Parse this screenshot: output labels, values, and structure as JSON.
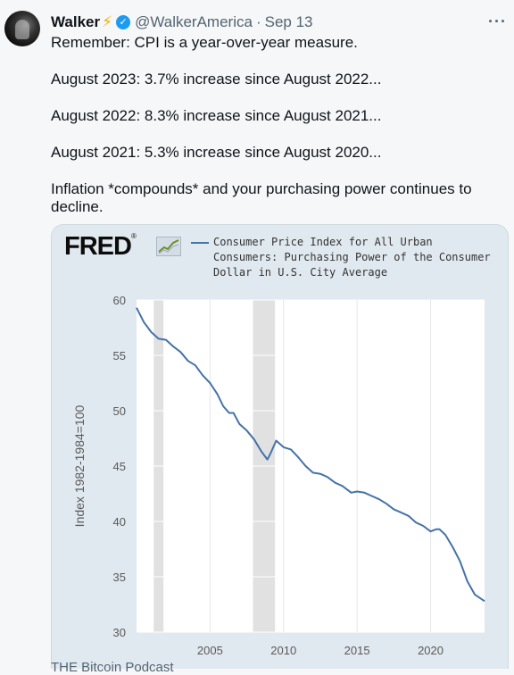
{
  "author": {
    "name": "Walker",
    "bolt": "⚡",
    "handle": "@WalkerAmerica",
    "separator": "·",
    "date": "Sep 13"
  },
  "icons": {
    "avatar": "avatar-icon",
    "verified": "verified-badge-icon",
    "more": "more-options-icon"
  },
  "more_label": "···",
  "tweet": {
    "lines": [
      "Remember: CPI is a year-over-year measure.",
      "August 2023: 3.7% increase since August 2022...",
      "August 2022: 8.3% increase since August 2021...",
      "August 2021: 5.3% increase since August 2020...",
      "Inflation *compounds* and your purchasing power continues to decline."
    ]
  },
  "card": {
    "logo": "FRED",
    "logo_reg": "®",
    "legend_lines": [
      "Consumer Price Index for All Urban",
      "Consumers: Purchasing Power of the Consumer",
      "Dollar in U.S. City Average"
    ]
  },
  "next_tweet_peek": "THE Bitcoin Podcast",
  "colors": {
    "series": "#4572a7",
    "recession": "#e1e1e1",
    "plot_bg": "#ffffff",
    "card_bg": "#e1e9f0",
    "verified": "#1d9bf0"
  },
  "chart_data": {
    "type": "line",
    "ylabel": "Index 1982-1984=100",
    "ylim": [
      30,
      60
    ],
    "yticks": [
      30,
      35,
      40,
      45,
      50,
      55,
      60
    ],
    "xlim": [
      2000.0,
      2023.67
    ],
    "xticks": [
      2005,
      2010,
      2015,
      2020
    ],
    "recessions": [
      [
        2001.17,
        2001.83
      ],
      [
        2007.92,
        2009.42
      ]
    ],
    "series": [
      {
        "x": [
          2000.0,
          2000.5,
          2001.0,
          2001.5,
          2002.0,
          2002.5,
          2003.0,
          2003.5,
          2004.0,
          2004.5,
          2005.0,
          2005.5,
          2005.9,
          2006.3,
          2006.6,
          2007.0,
          2007.5,
          2008.0,
          2008.5,
          2008.9,
          2009.1,
          2009.5,
          2010.0,
          2010.5,
          2011.0,
          2011.5,
          2012.0,
          2012.5,
          2013.0,
          2013.5,
          2014.0,
          2014.6,
          2015.0,
          2015.5,
          2016.0,
          2016.5,
          2017.0,
          2017.5,
          2018.0,
          2018.5,
          2019.0,
          2019.5,
          2020.0,
          2020.4,
          2020.6,
          2021.0,
          2021.5,
          2022.0,
          2022.5,
          2023.0,
          2023.67
        ],
        "values": [
          59.3,
          58.0,
          57.1,
          56.5,
          56.4,
          55.8,
          55.3,
          54.5,
          54.1,
          53.2,
          52.5,
          51.5,
          50.4,
          49.8,
          49.8,
          48.8,
          48.2,
          47.4,
          46.3,
          45.6,
          46.1,
          47.3,
          46.7,
          46.5,
          45.8,
          45.0,
          44.4,
          44.3,
          44.0,
          43.5,
          43.2,
          42.6,
          42.7,
          42.6,
          42.3,
          42.0,
          41.6,
          41.1,
          40.8,
          40.5,
          39.9,
          39.6,
          39.1,
          39.3,
          39.3,
          38.8,
          37.7,
          36.4,
          34.6,
          33.4,
          32.8
        ]
      }
    ]
  }
}
